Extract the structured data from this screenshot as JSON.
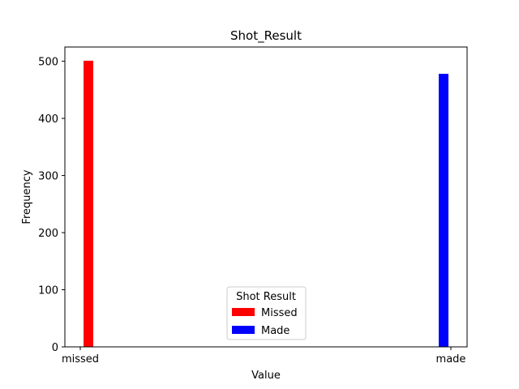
{
  "chart_data": {
    "type": "bar",
    "title": "Shot_Result",
    "xlabel": "Value",
    "ylabel": "Frequency",
    "categories": [
      "missed",
      "made"
    ],
    "yticks": [
      0,
      100,
      200,
      300,
      400,
      500
    ],
    "ylim": [
      0,
      525
    ],
    "grid": false,
    "legend": {
      "title": "Shot Result",
      "position": "lower-center"
    },
    "series": [
      {
        "name": "Missed",
        "category": "missed",
        "value": 501,
        "color": "#ff0000"
      },
      {
        "name": "Made",
        "category": "made",
        "value": 478,
        "color": "#0000ff"
      }
    ]
  }
}
